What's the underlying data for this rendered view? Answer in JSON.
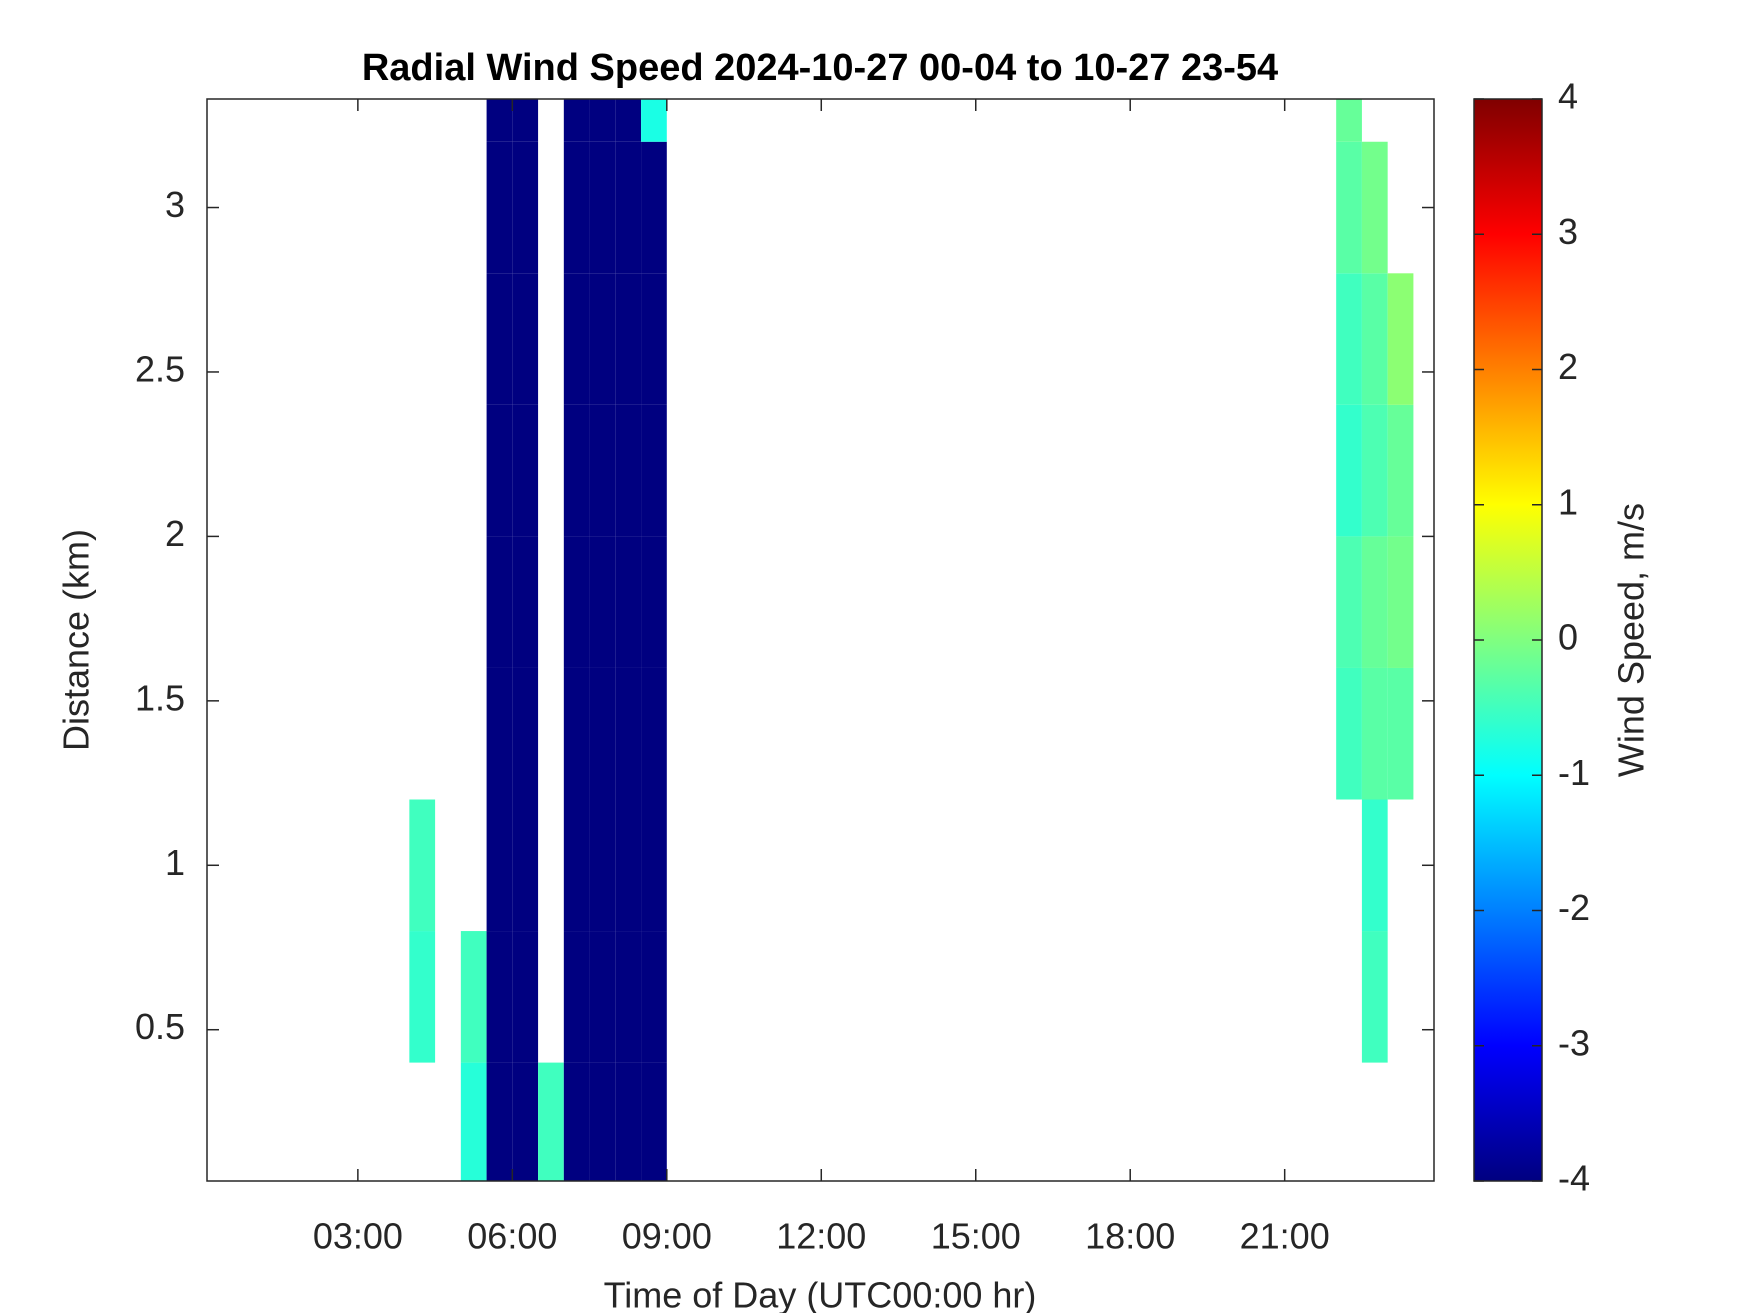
{
  "chart_data": {
    "type": "heatmap",
    "title": "Radial Wind Speed 2024-10-27 00-04 to 10-27 23-54",
    "x_label": "Time of Day (UTC00:00 hr)",
    "y_label": "Distance (km)",
    "colorbar_label": "Wind Speed, m/s",
    "colormap": "jet",
    "x": [
      4.25,
      5.25,
      5.75,
      6.25,
      6.75,
      7.25,
      7.75,
      8.25,
      8.75,
      22.25,
      22.75,
      23.25
    ],
    "y": [
      0.2,
      0.6,
      1.0,
      1.4,
      1.8,
      2.2,
      2.6,
      3.0,
      3.4
    ],
    "z": [
      [
        null,
        -0.7,
        -4,
        -4,
        -0.5,
        -4,
        -4,
        -4,
        -4,
        null,
        null,
        null
      ],
      [
        -0.6,
        -0.5,
        -4,
        -4,
        null,
        -4,
        -4,
        -4,
        -4,
        null,
        -0.5,
        null
      ],
      [
        -0.5,
        null,
        -4,
        -4,
        null,
        -4,
        -4,
        -4,
        -4,
        null,
        -0.6,
        null
      ],
      [
        null,
        null,
        -4,
        -4,
        null,
        -4,
        -4,
        -4,
        -4,
        -0.5,
        -0.3,
        -0.3
      ],
      [
        null,
        null,
        -4,
        -4,
        null,
        -4,
        -4,
        -4,
        -4,
        -0.4,
        -0.2,
        -0.1
      ],
      [
        null,
        null,
        -4,
        -4,
        null,
        -4,
        -4,
        -4,
        -4,
        -0.6,
        -0.4,
        -0.2
      ],
      [
        null,
        null,
        -4,
        -4,
        null,
        -4,
        -4,
        -4,
        -4,
        -0.5,
        -0.3,
        0.1
      ],
      [
        null,
        null,
        -4,
        -4,
        null,
        -4,
        -4,
        -4,
        -4,
        -0.3,
        -0.1,
        null
      ],
      [
        null,
        null,
        -4,
        -4,
        null,
        -4,
        -4,
        -4,
        -0.8,
        -0.2,
        null,
        null
      ]
    ],
    "xlim": [
      0.07,
      23.9
    ],
    "ylim": [
      0.04,
      3.33
    ],
    "xticks": [
      {
        "value": 3,
        "label": "03:00"
      },
      {
        "value": 6,
        "label": "06:00"
      },
      {
        "value": 9,
        "label": "09:00"
      },
      {
        "value": 12,
        "label": "12:00"
      },
      {
        "value": 15,
        "label": "15:00"
      },
      {
        "value": 18,
        "label": "18:00"
      },
      {
        "value": 21,
        "label": "21:00"
      }
    ],
    "yticks": [
      0.5,
      1,
      1.5,
      2,
      2.5,
      3
    ],
    "clim": [
      -4,
      4
    ],
    "cticks": [
      -4,
      -3,
      -2,
      -1,
      0,
      1,
      2,
      3,
      4
    ]
  }
}
